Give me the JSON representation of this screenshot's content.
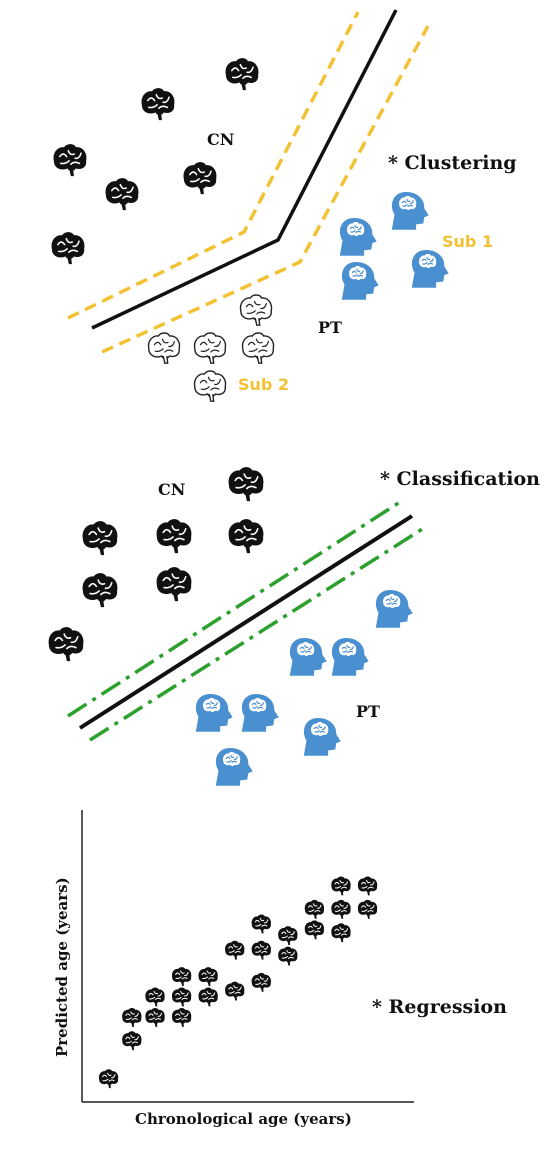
{
  "colors": {
    "brain_dark": "#111111",
    "patient_blue": "#4a90d0",
    "subgroup_gold": "#f3c234",
    "classifier_green": "#2ca02c",
    "boundary_black": "#111111"
  },
  "icons": {
    "cn_brain": "filled-brain-icon",
    "patient": "head-with-brain-icon",
    "subgroup_brain": "outline-brain-icon"
  },
  "clustering": {
    "title": "* Clustering",
    "cn_label": "CN",
    "pt_label": "PT",
    "sub1_label": "Sub 1",
    "sub2_label": "Sub 2"
  },
  "classification": {
    "title": "* Classification",
    "cn_label": "CN",
    "pt_label": "PT"
  },
  "regression": {
    "title": "* Regression",
    "xlabel": "Chronological age (years)",
    "ylabel": "Predicted age (years)"
  },
  "chart_data": {
    "type": "scatter",
    "title": "* Regression",
    "xlabel": "Chronological age (years)",
    "ylabel": "Predicted age (years)",
    "grid": false,
    "note": "axes carry no tick labels; points are positioned in unlabeled relative units 0-10",
    "xlim": [
      0,
      10
    ],
    "ylim": [
      0,
      10
    ],
    "points": [
      {
        "x": 0.8,
        "y": 0.8
      },
      {
        "x": 1.5,
        "y": 2.1
      },
      {
        "x": 1.5,
        "y": 2.9
      },
      {
        "x": 2.2,
        "y": 2.9
      },
      {
        "x": 3.0,
        "y": 2.9
      },
      {
        "x": 2.2,
        "y": 3.6
      },
      {
        "x": 3.0,
        "y": 3.6
      },
      {
        "x": 3.8,
        "y": 3.6
      },
      {
        "x": 3.0,
        "y": 4.3
      },
      {
        "x": 3.8,
        "y": 4.3
      },
      {
        "x": 4.6,
        "y": 3.8
      },
      {
        "x": 5.4,
        "y": 4.1
      },
      {
        "x": 4.6,
        "y": 5.2
      },
      {
        "x": 5.4,
        "y": 5.2
      },
      {
        "x": 6.2,
        "y": 5.0
      },
      {
        "x": 5.4,
        "y": 6.1
      },
      {
        "x": 6.2,
        "y": 5.7
      },
      {
        "x": 7.0,
        "y": 5.9
      },
      {
        "x": 7.8,
        "y": 5.8
      },
      {
        "x": 7.0,
        "y": 6.6
      },
      {
        "x": 7.8,
        "y": 6.6
      },
      {
        "x": 8.6,
        "y": 6.6
      },
      {
        "x": 7.8,
        "y": 7.4
      },
      {
        "x": 8.6,
        "y": 7.4
      }
    ]
  }
}
